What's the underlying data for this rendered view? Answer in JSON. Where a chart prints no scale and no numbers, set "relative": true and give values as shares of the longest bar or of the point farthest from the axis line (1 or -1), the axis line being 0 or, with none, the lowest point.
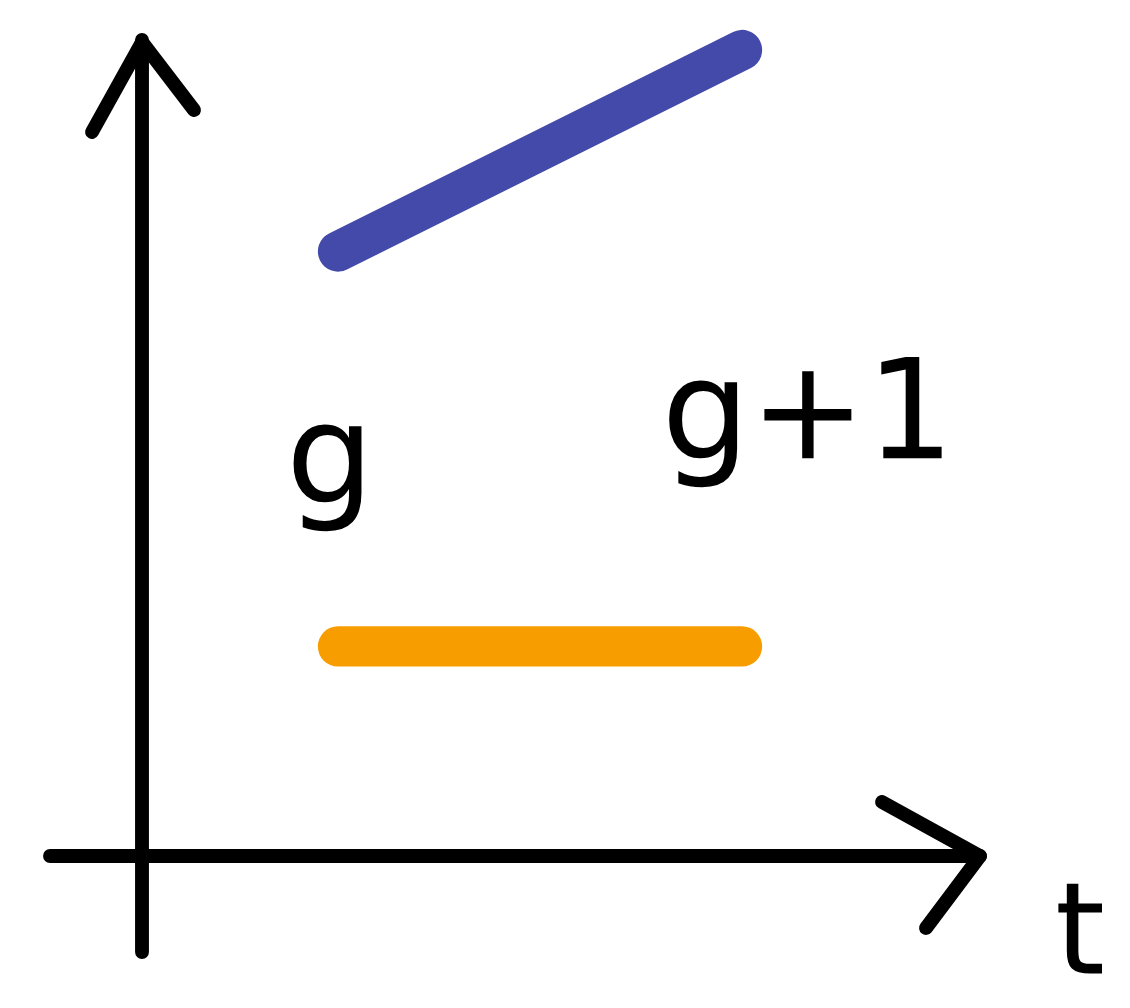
{
  "chart_data": {
    "type": "line",
    "relative": true,
    "categories": [
      null,
      null
    ],
    "series": [
      {
        "color": "#434aa9",
        "values": [
          0.75,
          1
        ]
      },
      {
        "color": "#f89d00",
        "values": [
          0.26,
          0.26
        ]
      }
    ],
    "xlabel": "t",
    "annotations": [
      "g",
      "g+1"
    ],
    "line_style": "solid"
  }
}
